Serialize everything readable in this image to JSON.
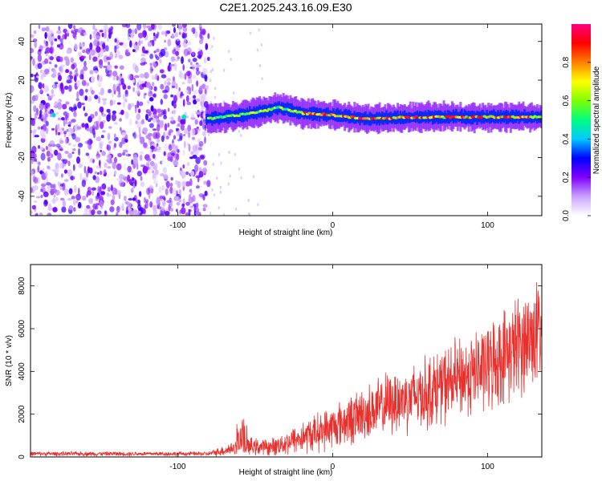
{
  "title": "C2E1.2025.243.16.09.E30",
  "chart_data": [
    {
      "type": "heatmap",
      "xlabel": "Height of straight line (km)",
      "ylabel": "Frequency (Hz)",
      "xlim": [
        -195,
        135
      ],
      "ylim": [
        -50,
        49
      ],
      "xticks": [
        -100,
        0,
        100
      ],
      "yticks": [
        -40,
        -20,
        0,
        20,
        40
      ],
      "colorbar": {
        "label": "Normalized spectral amplitude",
        "range": [
          0,
          1
        ],
        "ticks": [
          0.0,
          0.2,
          0.4,
          0.6,
          0.8
        ],
        "tick_labels": [
          "0.0",
          "0.2",
          "0.4",
          "0.6",
          "0.8"
        ],
        "colors": [
          "#ffffff",
          "#c9a3ff",
          "#8000ff",
          "#0000ff",
          "#00c8ff",
          "#00ff80",
          "#80ff00",
          "#ffff00",
          "#ff8000",
          "#ff0000",
          "#ff0080"
        ]
      },
      "noise_region_x": [
        -195,
        -80
      ],
      "noise_level": 0.2,
      "signal_track": [
        {
          "x": -80,
          "f": 0
        },
        {
          "x": -60,
          "f": 2
        },
        {
          "x": -45,
          "f": 4
        },
        {
          "x": -35,
          "f": 6
        },
        {
          "x": -20,
          "f": 3
        },
        {
          "x": 0,
          "f": 2
        },
        {
          "x": 20,
          "f": 0
        },
        {
          "x": 60,
          "f": 1
        },
        {
          "x": 100,
          "f": 1
        },
        {
          "x": 135,
          "f": 1
        }
      ]
    },
    {
      "type": "line",
      "xlabel": "Height of straight line (km)",
      "ylabel": "SNR (10 * v/v)",
      "xlim": [
        -195,
        135
      ],
      "ylim": [
        0,
        9000
      ],
      "xticks": [
        -100,
        0,
        100
      ],
      "yticks": [
        0,
        2000,
        4000,
        6000,
        8000
      ],
      "color": "#e8302d",
      "trend": [
        {
          "x": -195,
          "mean": 150,
          "spread": 120
        },
        {
          "x": -80,
          "mean": 150,
          "spread": 120
        },
        {
          "x": -70,
          "mean": 300,
          "spread": 300
        },
        {
          "x": -60,
          "mean": 500,
          "spread": 500
        },
        {
          "x": -40,
          "mean": 450,
          "spread": 450
        },
        {
          "x": -20,
          "mean": 900,
          "spread": 900
        },
        {
          "x": 0,
          "mean": 1400,
          "spread": 1200
        },
        {
          "x": 20,
          "mean": 2000,
          "spread": 1500
        },
        {
          "x": 40,
          "mean": 2600,
          "spread": 1800
        },
        {
          "x": 60,
          "mean": 3000,
          "spread": 2000
        },
        {
          "x": 80,
          "mean": 3600,
          "spread": 2200
        },
        {
          "x": 100,
          "mean": 4200,
          "spread": 2400
        },
        {
          "x": 120,
          "mean": 5200,
          "spread": 2800
        },
        {
          "x": 135,
          "mean": 6000,
          "spread": 3000
        }
      ],
      "max_value": 8600
    }
  ]
}
